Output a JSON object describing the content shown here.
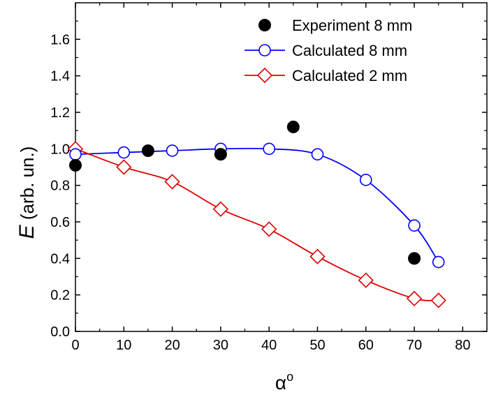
{
  "chart_data": {
    "type": "scatter",
    "xlabel_main": "α",
    "xlabel_sup": "o",
    "ylabel_main": "E",
    "ylabel_rest": " (arb. un.)",
    "xlim": [
      0,
      85
    ],
    "ylim": [
      0.0,
      1.8
    ],
    "xticks": [
      0,
      10,
      20,
      30,
      40,
      50,
      60,
      70,
      80
    ],
    "yticks": [
      0.0,
      0.2,
      0.4,
      0.6,
      0.8,
      1.0,
      1.2,
      1.4,
      1.6
    ],
    "xtick_labels": [
      "0",
      "10",
      "20",
      "30",
      "40",
      "50",
      "60",
      "70",
      "80"
    ],
    "ytick_labels": [
      "0.0",
      "0.2",
      "0.4",
      "0.6",
      "0.8",
      "1.0",
      "1.2",
      "1.4",
      "1.6"
    ],
    "grid": false,
    "legend_position": "top-right",
    "series": [
      {
        "name": "Experiment 8 mm",
        "marker": "filled-circle",
        "color": "#000000",
        "line": false,
        "x": [
          0,
          15,
          30,
          45,
          70
        ],
        "y": [
          0.91,
          0.99,
          0.97,
          1.12,
          0.4
        ]
      },
      {
        "name": "Calculated 8 mm",
        "marker": "open-circle",
        "color": "#0000ff",
        "line": true,
        "x": [
          0,
          10,
          20,
          30,
          40,
          50,
          60,
          70,
          75
        ],
        "y": [
          0.97,
          0.98,
          0.99,
          1.0,
          1.0,
          0.97,
          0.83,
          0.58,
          0.38
        ]
      },
      {
        "name": "Calculated 2 mm",
        "marker": "open-diamond",
        "color": "#dd0000",
        "line": true,
        "x": [
          0,
          10,
          20,
          30,
          40,
          50,
          60,
          70,
          75
        ],
        "y": [
          1.0,
          0.9,
          0.82,
          0.67,
          0.56,
          0.41,
          0.28,
          0.18,
          0.17
        ]
      }
    ]
  }
}
